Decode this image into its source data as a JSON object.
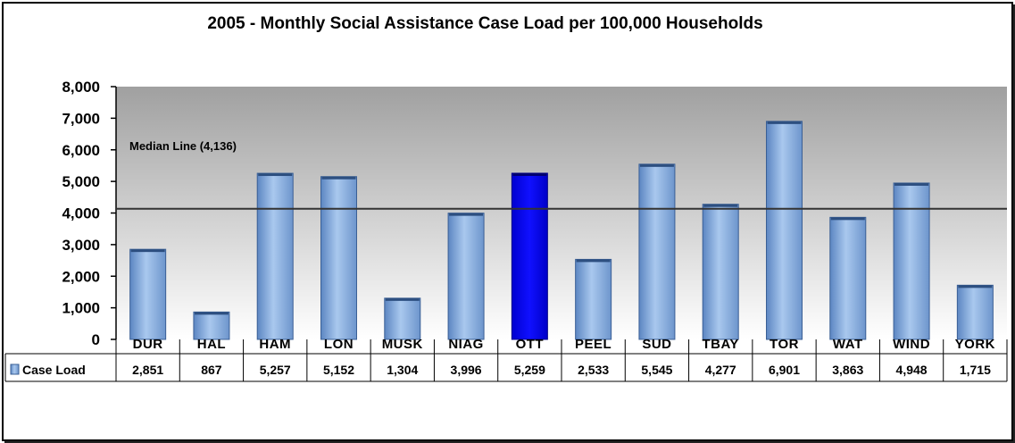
{
  "chart_data": {
    "type": "bar",
    "title": "2005 - Monthly Social Assistance Case Load per 100,000 Households",
    "categories": [
      "DUR",
      "HAL",
      "HAM",
      "LON",
      "MUSK",
      "NIAG",
      "OTT",
      "PEEL",
      "SUD",
      "TBAY",
      "TOR",
      "WAT",
      "WIND",
      "YORK"
    ],
    "series": [
      {
        "name": "Case Load",
        "values": [
          2851,
          867,
          5257,
          5152,
          1304,
          3996,
          5259,
          2533,
          5545,
          4277,
          6901,
          3863,
          4948,
          1715
        ],
        "labels": [
          "2,851",
          "867",
          "5,257",
          "5,152",
          "1,304",
          "3,996",
          "5,259",
          "2,533",
          "5,545",
          "4,277",
          "6,901",
          "3,863",
          "4,948",
          "1,715"
        ]
      }
    ],
    "highlight_category": "OTT",
    "ylim": [
      0,
      8000
    ],
    "yticks": [
      0,
      1000,
      2000,
      3000,
      4000,
      5000,
      6000,
      7000,
      8000
    ],
    "ytick_labels": [
      "0",
      "1,000",
      "2,000",
      "3,000",
      "4,000",
      "5,000",
      "6,000",
      "7,000",
      "8,000"
    ],
    "median": {
      "value": 4136,
      "label": "Median Line (4,136)"
    },
    "data_table": true,
    "colors": {
      "bar": "#8fb4e3",
      "bar_dark": "#4a74b0",
      "highlight": "#0000ee",
      "plot_top": "#a0a0a0",
      "plot_bottom": "#ffffff"
    }
  }
}
